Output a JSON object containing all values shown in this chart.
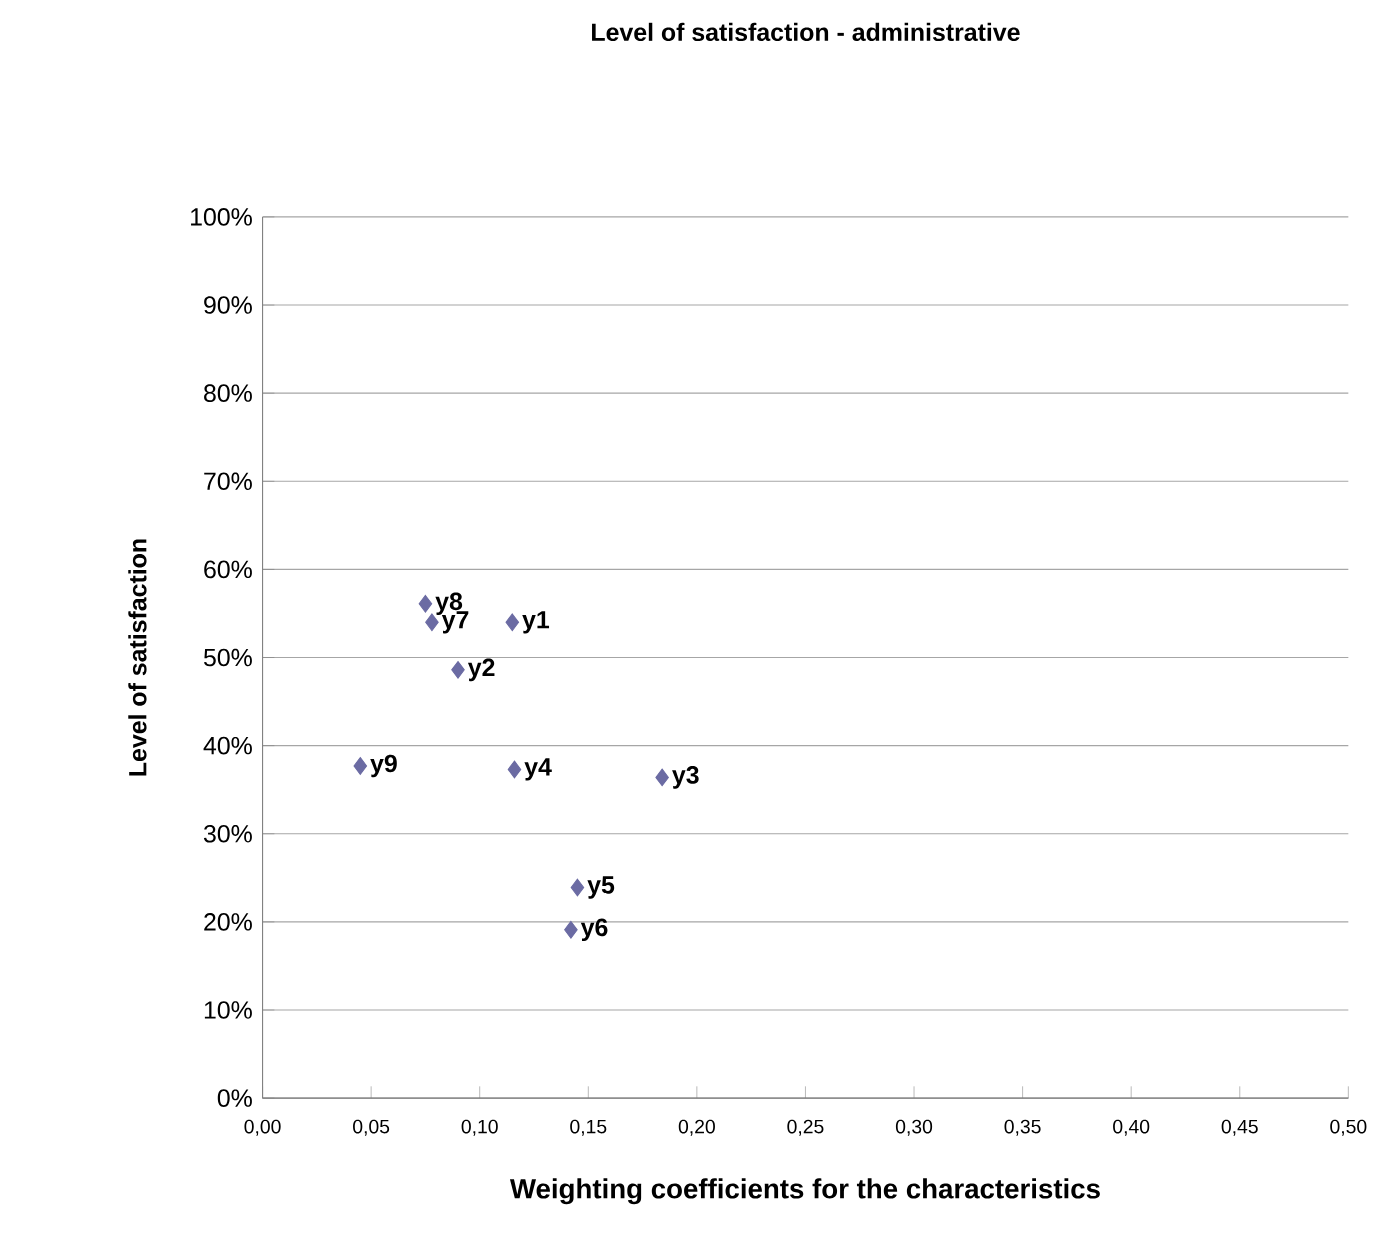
{
  "chart_data": {
    "type": "scatter",
    "title": "Level of satisfaction - administrative",
    "xlabel": "Weighting coefficients for the characteristics",
    "ylabel": "Level of satisfaction",
    "x": [
      0.115,
      0.09,
      0.184,
      0.116,
      0.145,
      0.142,
      0.078,
      0.075,
      0.045
    ],
    "values": [
      54,
      48.6,
      36.4,
      37.3,
      23.9,
      19.1,
      54,
      56.1,
      37.7
    ],
    "color": "#6b6ba3",
    "marker": "diamond",
    "grid": "y",
    "xlim": [
      0,
      0.5
    ],
    "ylim": [
      0,
      100
    ],
    "xticks": [
      {
        "value": 0,
        "label": "0,00"
      },
      {
        "value": 0.05,
        "label": "0,05"
      },
      {
        "value": 0.1,
        "label": "0,10"
      },
      {
        "value": 0.15,
        "label": "0,15"
      },
      {
        "value": 0.2,
        "label": "0,20"
      },
      {
        "value": 0.25,
        "label": "0,25"
      },
      {
        "value": 0.3,
        "label": "0,30"
      },
      {
        "value": 0.35,
        "label": "0,35"
      },
      {
        "value": 0.4,
        "label": "0,40"
      },
      {
        "value": 0.45,
        "label": "0,45"
      },
      {
        "value": 0.5,
        "label": "0,50"
      }
    ],
    "yticks": [
      {
        "value": 0,
        "label": "0%"
      },
      {
        "value": 10,
        "label": "10%"
      },
      {
        "value": 20,
        "label": "20%"
      },
      {
        "value": 30,
        "label": "30%"
      },
      {
        "value": 40,
        "label": "40%"
      },
      {
        "value": 50,
        "label": "50%"
      },
      {
        "value": 60,
        "label": "60%"
      },
      {
        "value": 70,
        "label": "70%"
      },
      {
        "value": 80,
        "label": "80%"
      },
      {
        "value": 90,
        "label": "90%"
      },
      {
        "value": 100,
        "label": "100%"
      }
    ],
    "annotations": [
      {
        "text": "y1",
        "x": 0.115,
        "y": 54
      },
      {
        "text": "y2",
        "x": 0.09,
        "y": 48.6
      },
      {
        "text": "y3",
        "x": 0.184,
        "y": 36.4
      },
      {
        "text": "y4",
        "x": 0.116,
        "y": 37.3
      },
      {
        "text": "y5",
        "x": 0.145,
        "y": 23.9
      },
      {
        "text": "y6",
        "x": 0.142,
        "y": 19.1
      },
      {
        "text": "y7",
        "x": 0.078,
        "y": 54
      },
      {
        "text": "y8",
        "x": 0.075,
        "y": 56.1
      },
      {
        "text": "y9",
        "x": 0.045,
        "y": 37.7
      }
    ]
  }
}
